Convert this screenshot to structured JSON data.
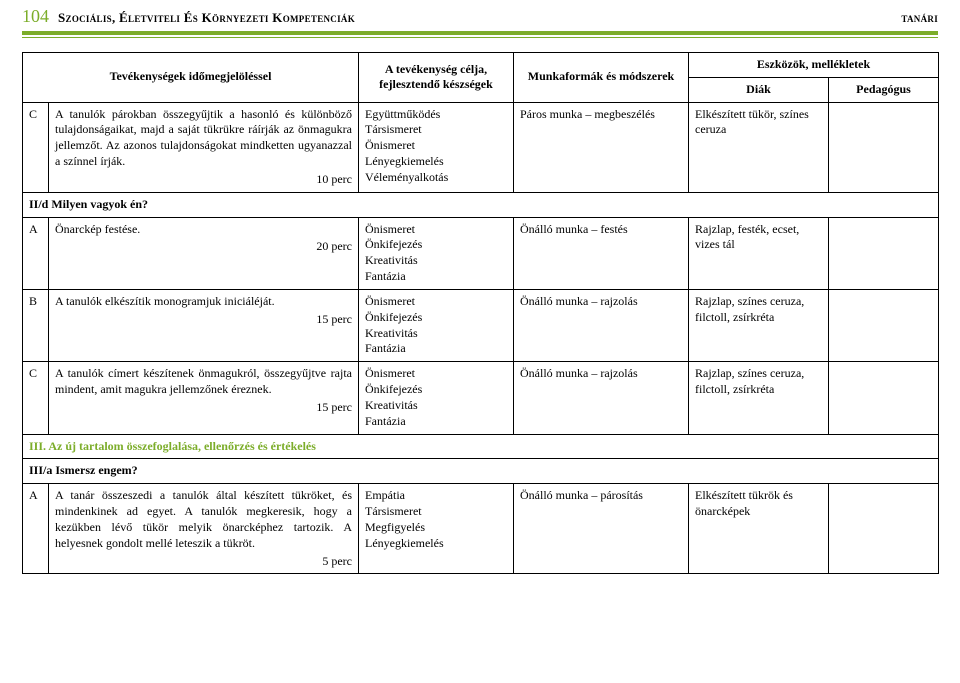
{
  "header": {
    "page_number": "104",
    "title_left": "Szociális, életviteli és környezeti kompetenciák",
    "title_right": "tanári"
  },
  "columns": {
    "c1": "Tevékenységek időmegjelöléssel",
    "c2": "A tevékenység célja, fejlesztendő készségek",
    "c3": "Munkaformák és módszerek",
    "c4_group": "Eszközök, mellékletek",
    "c4": "Diák",
    "c5": "Pedagógus"
  },
  "rows": [
    {
      "letter": "C",
      "desc": "A tanulók párokban összegyűjtik a hasonló és különböző tulajdonságaikat, majd a saját tükrükre ráírják az önmagukra jellemzőt. Az azonos tulajdonságokat mindketten ugyanazzal a színnel írják.",
      "time": "10 perc",
      "skills": "Együttműködés\nTársismeret\nÖnismeret\nLényegkiemelés\nVéleményalkotás",
      "methods": "Páros munka – megbeszélés",
      "student": "Elkészített tükör, színes ceruza",
      "teacher": ""
    },
    {
      "section": true,
      "label": "II/d Milyen vagyok én?"
    },
    {
      "letter": "A",
      "desc": "Önarckép festése.",
      "time": "20 perc",
      "skills": "Önismeret\nÖnkifejezés\nKreativitás\nFantázia",
      "methods": "Önálló munka – festés",
      "student": "Rajzlap, festék, ecset, vizes tál",
      "teacher": ""
    },
    {
      "letter": "B",
      "desc": "A tanulók elkészítik monogramjuk iniciáléját.",
      "time": "15 perc",
      "skills": "Önismeret\nÖnkifejezés\nKreativitás\nFantázia",
      "methods": "Önálló munka – rajzolás",
      "student": "Rajzlap, színes ceruza, filctoll, zsírkréta",
      "teacher": ""
    },
    {
      "letter": "C",
      "desc": "A tanulók címert készítenek önmagukról, összegyűjtve rajta mindent, amit magukra jellemzőnek éreznek.",
      "time": "15 perc",
      "skills": "Önismeret\nÖnkifejezés\nKreativitás\nFantázia",
      "methods": "Önálló munka – rajzolás",
      "student": "Rajzlap, színes ceruza, filctoll, zsírkréta",
      "teacher": ""
    },
    {
      "section": true,
      "green": true,
      "label": "III. Az új tartalom összefoglalása, ellenőrzés és értékelés"
    },
    {
      "section": true,
      "label": "III/a Ismersz engem?"
    },
    {
      "letter": "A",
      "desc": "A tanár összeszedi a tanulók által készített tükröket, és mindenkinek ad egyet. A tanulók megkeresik, hogy a kezükben lévő tükör melyik önarcképhez tartozik. A helyesnek gondolt mellé leteszik a tükröt.",
      "time": "5 perc",
      "skills": "Empátia\nTársismeret\nMegfigyelés\nLényegkiemelés",
      "methods": "Önálló munka – párosítás",
      "student": "Elkészített tükrök és önarcképek",
      "teacher": ""
    }
  ]
}
